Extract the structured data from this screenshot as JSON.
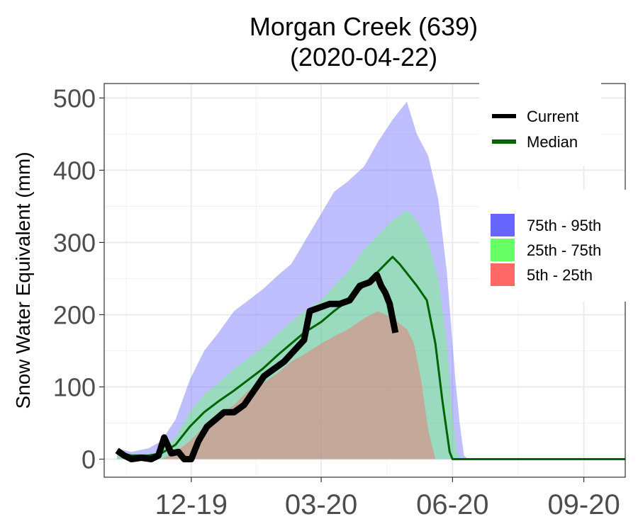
{
  "chart_data": {
    "type": "area",
    "title": "Morgan Creek (639)",
    "subtitle": "(2020-04-22)",
    "xlabel": "",
    "ylabel": "Snow Water Equivalent (mm)",
    "ylim": [
      -25,
      520
    ],
    "xlim": [
      "2019-10-01",
      "2020-09-30"
    ],
    "y_ticks": [
      0,
      100,
      200,
      300,
      400,
      500
    ],
    "x_ticks": [
      {
        "date": "2019-12-01",
        "label": "12-19"
      },
      {
        "date": "2020-03-01",
        "label": "03-20"
      },
      {
        "date": "2020-06-01",
        "label": "06-20"
      },
      {
        "date": "2020-09-01",
        "label": "09-20"
      }
    ],
    "grid": true,
    "legend": [
      {
        "label": "Current",
        "kind": "line",
        "color": "#000000"
      },
      {
        "label": "Median",
        "kind": "line",
        "color": "#006400"
      },
      {
        "label": "75th - 95th",
        "kind": "fill",
        "color": "#6666ff"
      },
      {
        "label": "25th - 75th",
        "kind": "fill",
        "color": "#66ff66"
      },
      {
        "label": "5th - 25th",
        "kind": "fill",
        "color": "#ff6666"
      }
    ],
    "bands": [
      {
        "name": "75th - 95th",
        "color": "#6666ff",
        "opacity": 0.42,
        "points": [
          [
            "2019-10-10",
            0,
            15
          ],
          [
            "2019-10-20",
            0,
            10
          ],
          [
            "2019-11-01",
            0,
            15
          ],
          [
            "2019-11-10",
            0,
            25
          ],
          [
            "2019-11-20",
            0,
            55
          ],
          [
            "2019-11-30",
            0,
            110
          ],
          [
            "2019-12-10",
            0,
            150
          ],
          [
            "2019-12-20",
            0,
            175
          ],
          [
            "2019-12-31",
            0,
            205
          ],
          [
            "2020-01-10",
            0,
            220
          ],
          [
            "2020-01-20",
            0,
            235
          ],
          [
            "2020-01-31",
            0,
            255
          ],
          [
            "2020-02-09",
            0,
            270
          ],
          [
            "2020-02-18",
            0,
            300
          ],
          [
            "2020-03-01",
            0,
            340
          ],
          [
            "2020-03-10",
            0,
            370
          ],
          [
            "2020-03-20",
            0,
            385
          ],
          [
            "2020-03-31",
            0,
            405
          ],
          [
            "2020-04-10",
            0,
            440
          ],
          [
            "2020-04-20",
            0,
            470
          ],
          [
            "2020-04-30",
            0,
            495
          ],
          [
            "2020-05-07",
            0,
            450
          ],
          [
            "2020-05-15",
            0,
            420
          ],
          [
            "2020-05-22",
            0,
            360
          ],
          [
            "2020-05-28",
            0,
            260
          ],
          [
            "2020-06-03",
            0,
            110
          ],
          [
            "2020-06-06",
            0,
            50
          ],
          [
            "2020-06-09",
            0,
            5
          ],
          [
            "2020-06-12",
            0,
            0
          ]
        ]
      },
      {
        "name": "25th - 75th",
        "color": "#66ff66",
        "opacity": 0.42,
        "points": [
          [
            "2019-10-10",
            0,
            8
          ],
          [
            "2019-10-20",
            0,
            5
          ],
          [
            "2019-11-01",
            0,
            5
          ],
          [
            "2019-11-10",
            0,
            12
          ],
          [
            "2019-11-20",
            0,
            30
          ],
          [
            "2019-11-30",
            0,
            65
          ],
          [
            "2019-12-10",
            0,
            90
          ],
          [
            "2019-12-20",
            0,
            105
          ],
          [
            "2019-12-31",
            0,
            125
          ],
          [
            "2020-01-10",
            0,
            140
          ],
          [
            "2020-01-20",
            0,
            155
          ],
          [
            "2020-01-31",
            0,
            175
          ],
          [
            "2020-02-09",
            0,
            190
          ],
          [
            "2020-02-18",
            0,
            205
          ],
          [
            "2020-03-01",
            0,
            220
          ],
          [
            "2020-03-10",
            0,
            240
          ],
          [
            "2020-03-20",
            0,
            260
          ],
          [
            "2020-03-31",
            0,
            290
          ],
          [
            "2020-04-10",
            0,
            310
          ],
          [
            "2020-04-20",
            0,
            330
          ],
          [
            "2020-04-30",
            0,
            345
          ],
          [
            "2020-05-07",
            0,
            330
          ],
          [
            "2020-05-15",
            0,
            300
          ],
          [
            "2020-05-22",
            0,
            250
          ],
          [
            "2020-05-28",
            0,
            160
          ],
          [
            "2020-06-01",
            0,
            60
          ],
          [
            "2020-06-04",
            0,
            10
          ],
          [
            "2020-06-06",
            0,
            0
          ]
        ]
      },
      {
        "name": "5th - 25th",
        "color": "#ff6666",
        "opacity": 0.42,
        "points": [
          [
            "2019-11-10",
            0,
            0
          ],
          [
            "2019-11-20",
            0,
            10
          ],
          [
            "2019-11-30",
            0,
            25
          ],
          [
            "2019-12-10",
            0,
            45
          ],
          [
            "2019-12-20",
            0,
            60
          ],
          [
            "2019-12-31",
            0,
            75
          ],
          [
            "2020-01-10",
            0,
            95
          ],
          [
            "2020-01-20",
            0,
            105
          ],
          [
            "2020-01-31",
            0,
            120
          ],
          [
            "2020-02-09",
            0,
            135
          ],
          [
            "2020-02-18",
            0,
            145
          ],
          [
            "2020-03-01",
            0,
            160
          ],
          [
            "2020-03-10",
            0,
            170
          ],
          [
            "2020-03-20",
            0,
            180
          ],
          [
            "2020-03-31",
            0,
            195
          ],
          [
            "2020-04-10",
            0,
            205
          ],
          [
            "2020-04-20",
            0,
            195
          ],
          [
            "2020-04-30",
            0,
            180
          ],
          [
            "2020-05-05",
            0,
            160
          ],
          [
            "2020-05-10",
            0,
            110
          ],
          [
            "2020-05-15",
            0,
            40
          ],
          [
            "2020-05-20",
            0,
            0
          ]
        ]
      }
    ],
    "series": [
      {
        "name": "Median",
        "color": "#006400",
        "width": 3,
        "points": [
          [
            "2019-10-10",
            10
          ],
          [
            "2019-10-20",
            5
          ],
          [
            "2019-11-01",
            5
          ],
          [
            "2019-11-10",
            8
          ],
          [
            "2019-11-20",
            20
          ],
          [
            "2019-11-30",
            45
          ],
          [
            "2019-12-10",
            65
          ],
          [
            "2019-12-20",
            80
          ],
          [
            "2019-12-31",
            95
          ],
          [
            "2020-01-10",
            110
          ],
          [
            "2020-01-20",
            125
          ],
          [
            "2020-01-31",
            145
          ],
          [
            "2020-02-09",
            160
          ],
          [
            "2020-02-18",
            175
          ],
          [
            "2020-03-01",
            190
          ],
          [
            "2020-03-10",
            205
          ],
          [
            "2020-03-20",
            220
          ],
          [
            "2020-03-31",
            240
          ],
          [
            "2020-04-10",
            260
          ],
          [
            "2020-04-20",
            280
          ],
          [
            "2020-04-25",
            270
          ],
          [
            "2020-05-01",
            255
          ],
          [
            "2020-05-07",
            240
          ],
          [
            "2020-05-14",
            220
          ],
          [
            "2020-05-20",
            160
          ],
          [
            "2020-05-25",
            80
          ],
          [
            "2020-05-30",
            10
          ],
          [
            "2020-06-01",
            0
          ],
          [
            "2020-09-30",
            0
          ]
        ]
      },
      {
        "name": "Current",
        "color": "#000000",
        "width": 9,
        "points": [
          [
            "2019-10-10",
            12
          ],
          [
            "2019-10-15",
            5
          ],
          [
            "2019-10-20",
            0
          ],
          [
            "2019-10-27",
            2
          ],
          [
            "2019-11-03",
            0
          ],
          [
            "2019-11-08",
            5
          ],
          [
            "2019-11-12",
            30
          ],
          [
            "2019-11-17",
            8
          ],
          [
            "2019-11-22",
            10
          ],
          [
            "2019-11-26",
            0
          ],
          [
            "2019-12-01",
            0
          ],
          [
            "2019-12-06",
            25
          ],
          [
            "2019-12-12",
            45
          ],
          [
            "2019-12-18",
            55
          ],
          [
            "2019-12-24",
            65
          ],
          [
            "2019-12-31",
            65
          ],
          [
            "2020-01-07",
            75
          ],
          [
            "2020-01-14",
            95
          ],
          [
            "2020-01-21",
            115
          ],
          [
            "2020-01-28",
            125
          ],
          [
            "2020-02-04",
            135
          ],
          [
            "2020-02-11",
            150
          ],
          [
            "2020-02-18",
            165
          ],
          [
            "2020-02-22",
            205
          ],
          [
            "2020-02-29",
            210
          ],
          [
            "2020-03-07",
            215
          ],
          [
            "2020-03-14",
            215
          ],
          [
            "2020-03-21",
            220
          ],
          [
            "2020-03-28",
            240
          ],
          [
            "2020-04-04",
            245
          ],
          [
            "2020-04-09",
            255
          ],
          [
            "2020-04-12",
            240
          ],
          [
            "2020-04-15",
            230
          ],
          [
            "2020-04-18",
            215
          ],
          [
            "2020-04-22",
            175
          ]
        ]
      }
    ]
  }
}
